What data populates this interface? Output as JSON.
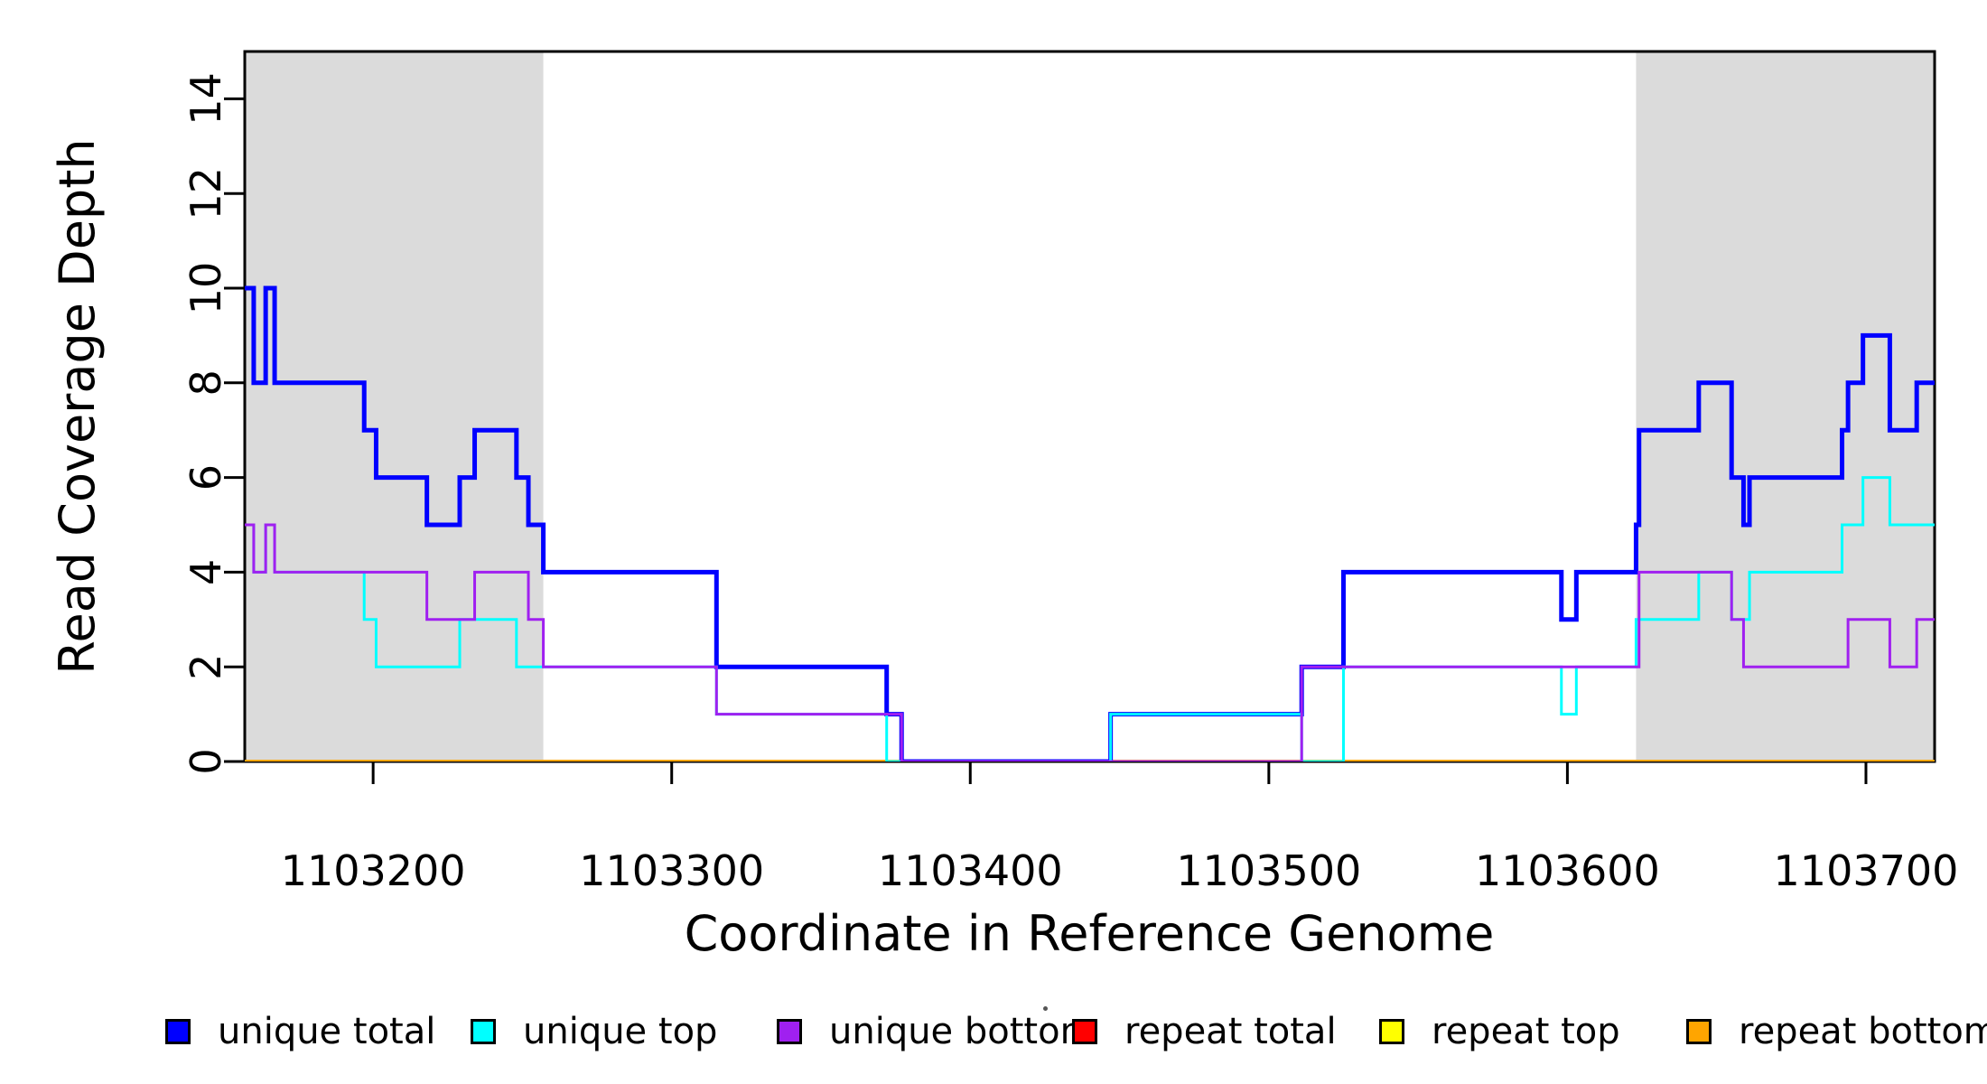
{
  "chart_data": {
    "type": "line",
    "subtype": "step-coverage",
    "title": "",
    "xlabel": "Coordinate in Reference Genome",
    "ylabel": "Read Coverage Depth",
    "xlim": [
      1103157,
      1103723
    ],
    "ylim": [
      0,
      15
    ],
    "x_ticks": [
      1103200,
      1103300,
      1103400,
      1103500,
      1103600,
      1103700
    ],
    "y_ticks": [
      0,
      2,
      4,
      6,
      8,
      10,
      12,
      14
    ],
    "grid": false,
    "legend_position": "bottom",
    "shaded_regions": [
      {
        "x0": 1103157,
        "x1": 1103257,
        "color": "#DBDBDB"
      },
      {
        "x0": 1103623,
        "x1": 1103723,
        "color": "#DBDBDB"
      }
    ],
    "series": [
      {
        "name": "unique total",
        "color": "#0000FF",
        "width": 5,
        "z": 4,
        "steps": [
          [
            1103157,
            10
          ],
          [
            1103160,
            8
          ],
          [
            1103164,
            10
          ],
          [
            1103167,
            8
          ],
          [
            1103197,
            7
          ],
          [
            1103201,
            6
          ],
          [
            1103218,
            5
          ],
          [
            1103229,
            6
          ],
          [
            1103234,
            7
          ],
          [
            1103248,
            6
          ],
          [
            1103252,
            5
          ],
          [
            1103257,
            4
          ],
          [
            1103315,
            2
          ],
          [
            1103372,
            1
          ],
          [
            1103377,
            0
          ],
          [
            1103447,
            1
          ],
          [
            1103511,
            2
          ],
          [
            1103525,
            4
          ],
          [
            1103598,
            3
          ],
          [
            1103603,
            4
          ],
          [
            1103623,
            5
          ],
          [
            1103624,
            7
          ],
          [
            1103644,
            8
          ],
          [
            1103655,
            6
          ],
          [
            1103659,
            5
          ],
          [
            1103661,
            6
          ],
          [
            1103692,
            7
          ],
          [
            1103694,
            8
          ],
          [
            1103699,
            9
          ],
          [
            1103708,
            7
          ],
          [
            1103717,
            8
          ]
        ]
      },
      {
        "name": "unique top",
        "color": "#00FFFF",
        "width": 3,
        "z": 5,
        "steps": [
          [
            1103157,
            5
          ],
          [
            1103160,
            4
          ],
          [
            1103164,
            5
          ],
          [
            1103167,
            4
          ],
          [
            1103197,
            3
          ],
          [
            1103201,
            2
          ],
          [
            1103229,
            3
          ],
          [
            1103248,
            2
          ],
          [
            1103315,
            1
          ],
          [
            1103372,
            0
          ],
          [
            1103447,
            1
          ],
          [
            1103511,
            0
          ],
          [
            1103525,
            2
          ],
          [
            1103598,
            1
          ],
          [
            1103603,
            2
          ],
          [
            1103623,
            3
          ],
          [
            1103644,
            4
          ],
          [
            1103655,
            3
          ],
          [
            1103661,
            4
          ],
          [
            1103692,
            5
          ],
          [
            1103699,
            6
          ],
          [
            1103708,
            5
          ]
        ]
      },
      {
        "name": "unique bottom",
        "color": "#A020F0",
        "width": 3,
        "z": 6,
        "steps": [
          [
            1103157,
            5
          ],
          [
            1103160,
            4
          ],
          [
            1103164,
            5
          ],
          [
            1103167,
            4
          ],
          [
            1103218,
            3
          ],
          [
            1103234,
            4
          ],
          [
            1103252,
            3
          ],
          [
            1103257,
            2
          ],
          [
            1103315,
            1
          ],
          [
            1103377,
            0
          ],
          [
            1103511,
            2
          ],
          [
            1103624,
            4
          ],
          [
            1103655,
            3
          ],
          [
            1103659,
            2
          ],
          [
            1103694,
            3
          ],
          [
            1103708,
            2
          ],
          [
            1103717,
            3
          ]
        ]
      },
      {
        "name": "repeat total",
        "color": "#FF0000",
        "width": 3,
        "z": 1,
        "steps": [
          [
            1103157,
            0
          ]
        ]
      },
      {
        "name": "repeat top",
        "color": "#FFFF00",
        "width": 3,
        "z": 2,
        "steps": [
          [
            1103157,
            0
          ]
        ]
      },
      {
        "name": "repeat bottom",
        "color": "#FFA500",
        "width": 4,
        "z": 3,
        "steps": [
          [
            1103157,
            0
          ]
        ]
      }
    ]
  },
  "legend": {
    "items": [
      {
        "label": "unique total",
        "color": "#0000FF"
      },
      {
        "label": "unique top",
        "color": "#00FFFF"
      },
      {
        "label": "unique bottom",
        "color": "#A020F0"
      },
      {
        "label": "repeat total",
        "color": "#FF0000"
      },
      {
        "label": "repeat top",
        "color": "#FFFF00"
      },
      {
        "label": "repeat bottom",
        "color": "#FFA500"
      }
    ]
  }
}
